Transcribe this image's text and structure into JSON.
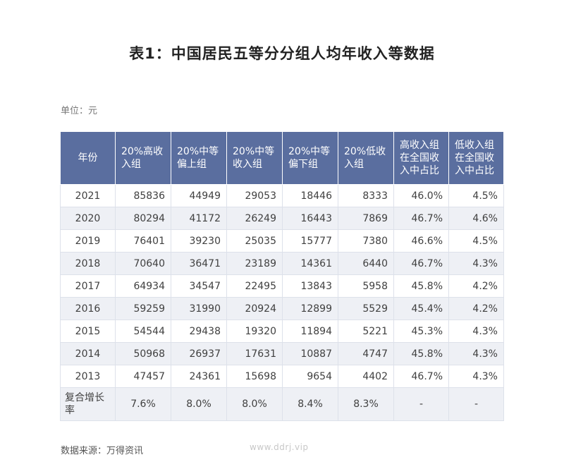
{
  "title": "表1：中国居民五等分分组人均年收入等数据",
  "unit": "单位：元",
  "table": {
    "headers": [
      "年份",
      "20%高收入组",
      "20%中等偏上组",
      "20%中等收入组",
      "20%中等偏下组",
      "20%低收入组",
      "高收入组在全国收入中占比",
      "低收入组在全国收入中占比"
    ],
    "rows": [
      [
        "2021",
        "85836",
        "44949",
        "29053",
        "18446",
        "8333",
        "46.0%",
        "4.5%"
      ],
      [
        "2020",
        "80294",
        "41172",
        "26249",
        "16443",
        "7869",
        "46.7%",
        "4.6%"
      ],
      [
        "2019",
        "76401",
        "39230",
        "25035",
        "15777",
        "7380",
        "46.6%",
        "4.5%"
      ],
      [
        "2018",
        "70640",
        "36471",
        "23189",
        "14361",
        "6440",
        "46.7%",
        "4.3%"
      ],
      [
        "2017",
        "64934",
        "34547",
        "22495",
        "13843",
        "5958",
        "45.8%",
        "4.2%"
      ],
      [
        "2016",
        "59259",
        "31990",
        "20924",
        "12899",
        "5529",
        "45.4%",
        "4.2%"
      ],
      [
        "2015",
        "54544",
        "29438",
        "19320",
        "11894",
        "5221",
        "45.3%",
        "4.3%"
      ],
      [
        "2014",
        "50968",
        "26937",
        "17631",
        "10887",
        "4747",
        "45.8%",
        "4.3%"
      ],
      [
        "2013",
        "47457",
        "24361",
        "15698",
        "9654",
        "4402",
        "46.7%",
        "4.3%"
      ]
    ],
    "cagr_row": [
      "复合增长率",
      "7.6%",
      "8.0%",
      "8.0%",
      "8.4%",
      "8.3%",
      "-",
      "-"
    ]
  },
  "source": "数据来源：万得资讯",
  "watermark": "www.ddrj.vip",
  "colors": {
    "header_bg": "#5a6e9f",
    "stripe_bg": "#eef0f5",
    "grid_line": "#dde1ea"
  }
}
